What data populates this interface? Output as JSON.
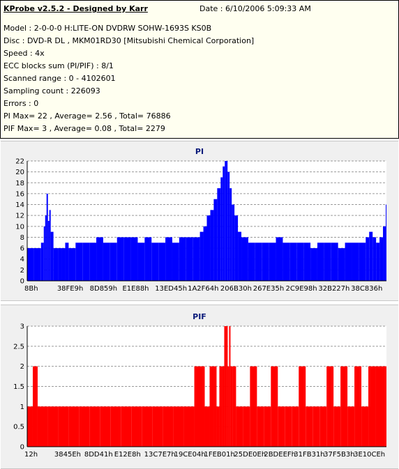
{
  "header": {
    "title": "KProbe v2.5.2 - Designed by Karr",
    "date": "Date : 6/10/2006 5:09:33 AM"
  },
  "info_lines": [
    "Model : 2-0-0-0 H:LITE-ON DVDRW SOHW-1693S KS0B",
    "Disc : DVD-R DL , MKM01RD30 [Mitsubishi Chemical Corporation]",
    "Speed : 4x",
    "ECC blocks sum (PI/PIF) : 8/1",
    "Scanned range : 0 - 4102601",
    "Sampling count : 226093",
    "Errors : 0",
    "PI Max= 22 , Average= 2.56 , Total= 76886",
    "PIF Max= 3 , Average= 0.08 , Total= 2279"
  ],
  "colors": {
    "pi": "#0000ff",
    "pif": "#ff0000",
    "grid": "#9a9a9a",
    "panel": "#f0f0f0"
  },
  "chart_data": [
    {
      "type": "bar",
      "title": "PI",
      "ylim": [
        0,
        22
      ],
      "yticks": [
        0,
        2,
        4,
        6,
        8,
        10,
        12,
        14,
        16,
        18,
        20,
        22
      ],
      "xtick_labels": [
        "8Bh",
        "38FE9h",
        "8D859h",
        "E1E88h",
        "13ED45h",
        "1A2F64h",
        "206B30h",
        "267E35h",
        "2C9E98h",
        "32B227h",
        "38C836h"
      ],
      "grid": true,
      "x": [
        0,
        10,
        20,
        24,
        26,
        28,
        30,
        32,
        34,
        38,
        45,
        50,
        55,
        60,
        70,
        80,
        90,
        100,
        110,
        120,
        130,
        140,
        150,
        160,
        170,
        180,
        190,
        200,
        210,
        220,
        230,
        240,
        250,
        255,
        260,
        265,
        270,
        275,
        280,
        283,
        286,
        290,
        293,
        296,
        300,
        305,
        310,
        320,
        330,
        340,
        350,
        360,
        370,
        380,
        390,
        400,
        410,
        420,
        430,
        440,
        450,
        460,
        470,
        480,
        490,
        495,
        500,
        505,
        510,
        515,
        519
      ],
      "values": [
        6,
        6,
        7,
        10,
        12,
        16,
        11,
        13,
        9,
        6,
        6,
        6,
        7,
        6,
        7,
        7,
        7,
        8,
        7,
        7,
        8,
        8,
        8,
        7,
        8,
        7,
        7,
        8,
        7,
        8,
        8,
        8,
        9,
        10,
        12,
        13,
        15,
        17,
        19,
        21,
        22,
        20,
        17,
        14,
        12,
        9,
        8,
        7,
        7,
        7,
        7,
        8,
        7,
        7,
        7,
        7,
        6,
        7,
        7,
        7,
        6,
        7,
        7,
        7,
        8,
        9,
        8,
        7,
        8,
        10,
        14
      ]
    },
    {
      "type": "bar",
      "title": "PIF",
      "ylim": [
        0,
        3
      ],
      "yticks": [
        0,
        0.5,
        1,
        1.5,
        2,
        2.5,
        3
      ],
      "xtick_labels": [
        "12h",
        "3845Eh",
        "8DD41h",
        "E12E8h",
        "13C7E7h",
        "19CE04h",
        "1FEB01h",
        "25DE0Eh",
        "2BDEEFh",
        "31FB31h",
        "37F5B3h",
        "3E10CEh"
      ],
      "grid": true,
      "x": [
        0,
        8,
        15,
        30,
        45,
        60,
        75,
        90,
        105,
        120,
        135,
        150,
        165,
        180,
        195,
        210,
        225,
        240,
        255,
        262,
        268,
        272,
        276,
        280,
        283,
        286,
        288,
        290,
        292,
        295,
        300,
        310,
        320,
        330,
        340,
        350,
        360,
        370,
        380,
        390,
        400,
        410,
        420,
        430,
        440,
        450,
        460,
        470,
        480,
        490,
        500,
        510,
        515
      ],
      "values": [
        1,
        2,
        1,
        1,
        1,
        1,
        1,
        1,
        1,
        1,
        1,
        1,
        1,
        1,
        1,
        1,
        1,
        2,
        1,
        2,
        2,
        1,
        2,
        2,
        3,
        3,
        2,
        3,
        2,
        2,
        1,
        1,
        2,
        1,
        1,
        2,
        1,
        1,
        1,
        2,
        1,
        1,
        1,
        2,
        1,
        2,
        1,
        2,
        1,
        2,
        2,
        2,
        2
      ]
    }
  ]
}
